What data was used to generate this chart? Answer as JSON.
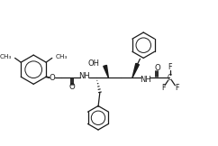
{
  "bg_color": "#ffffff",
  "line_color": "#1a1a1a",
  "lw": 1.3,
  "lw_thin": 0.9,
  "figsize": [
    2.42,
    1.62
  ],
  "dpi": 100,
  "xlim": [
    0,
    242
  ],
  "ylim": [
    0,
    162
  ]
}
